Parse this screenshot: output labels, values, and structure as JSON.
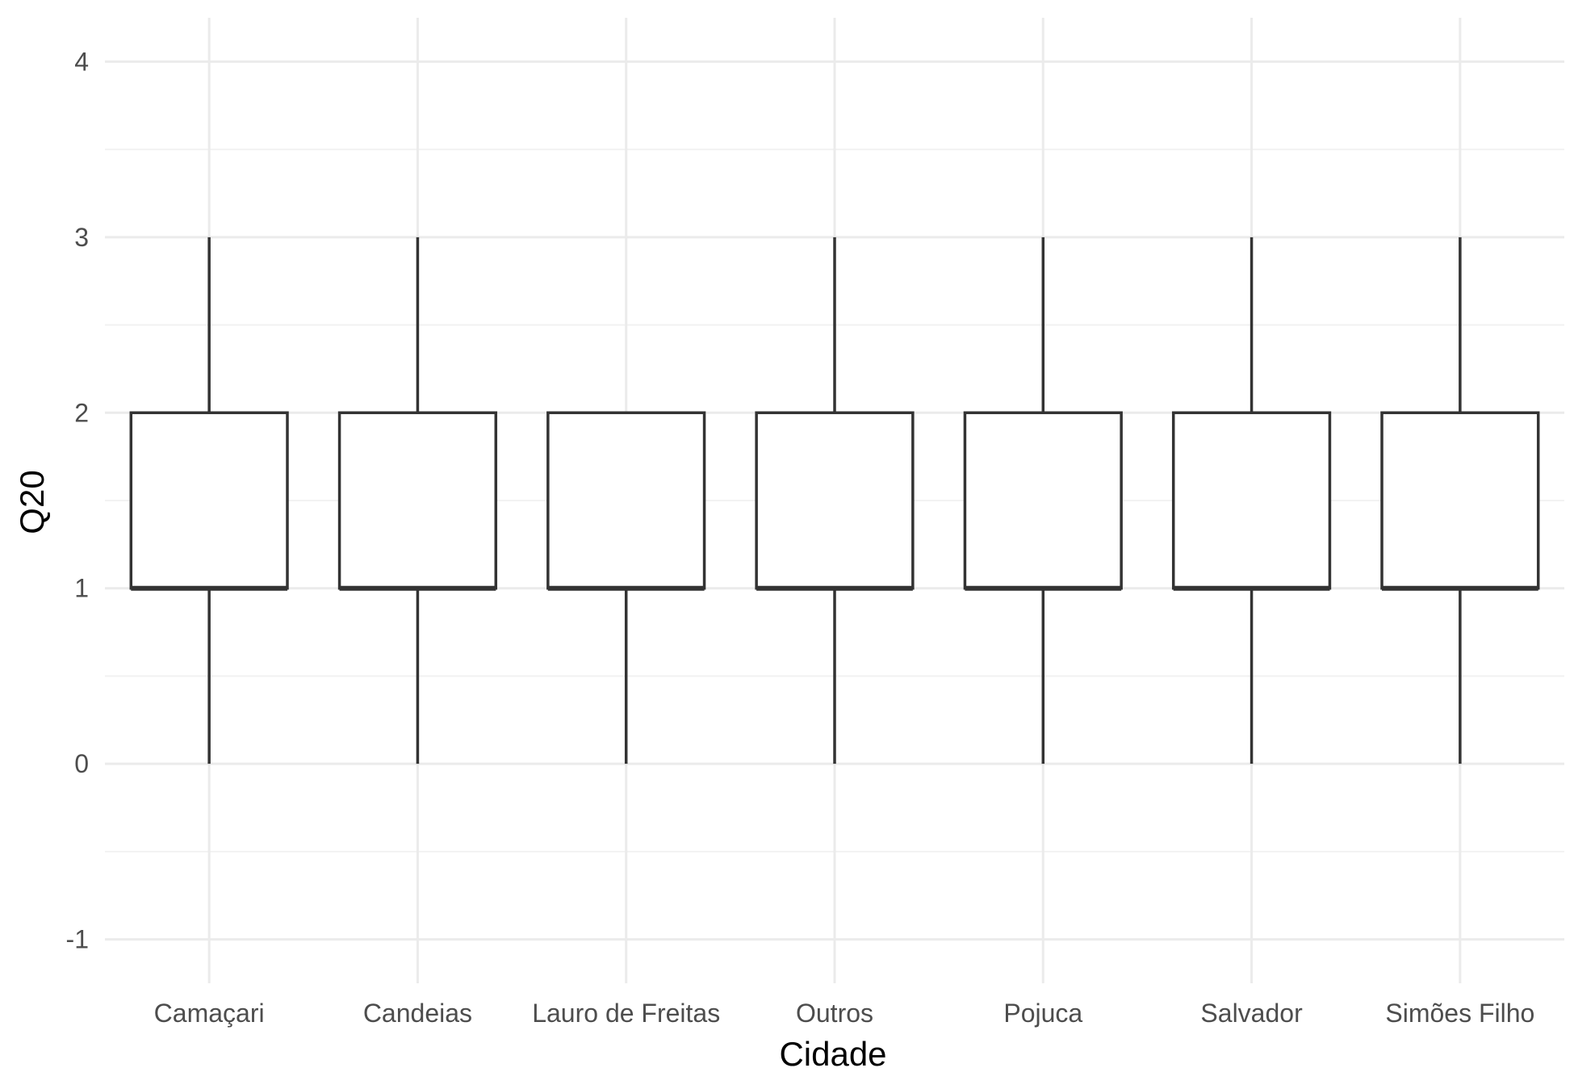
{
  "chart_data": {
    "type": "boxplot",
    "xlabel": "Cidade",
    "ylabel": "Q20",
    "ylim": [
      -1.25,
      4.25
    ],
    "yticks": [
      -1,
      0,
      1,
      2,
      3,
      4
    ],
    "grid": true,
    "categories": [
      "Camaçari",
      "Candeias",
      "Lauro de Freitas",
      "Outros",
      "Pojuca",
      "Salvador",
      "Simões Filho"
    ],
    "boxes": [
      {
        "category": "Camaçari",
        "min": 0,
        "q1": 1,
        "median": 1,
        "q3": 2,
        "max": 3
      },
      {
        "category": "Candeias",
        "min": 0,
        "q1": 1,
        "median": 1,
        "q3": 2,
        "max": 3
      },
      {
        "category": "Lauro de Freitas",
        "min": 0,
        "q1": 1,
        "median": 1,
        "q3": 2,
        "max": 2
      },
      {
        "category": "Outros",
        "min": 0,
        "q1": 1,
        "median": 1,
        "q3": 2,
        "max": 3
      },
      {
        "category": "Pojuca",
        "min": 0,
        "q1": 1,
        "median": 1,
        "q3": 2,
        "max": 3
      },
      {
        "category": "Salvador",
        "min": 0,
        "q1": 1,
        "median": 1,
        "q3": 2,
        "max": 3
      },
      {
        "category": "Simões Filho",
        "min": 0,
        "q1": 1,
        "median": 1,
        "q3": 2,
        "max": 3
      }
    ],
    "colors": {
      "box_stroke": "#333333",
      "box_fill": "#ffffff",
      "grid_major": "#ebebeb",
      "grid_minor": "#f2f2f2",
      "tick_text": "#4d4d4d",
      "title_text": "#000000"
    }
  }
}
